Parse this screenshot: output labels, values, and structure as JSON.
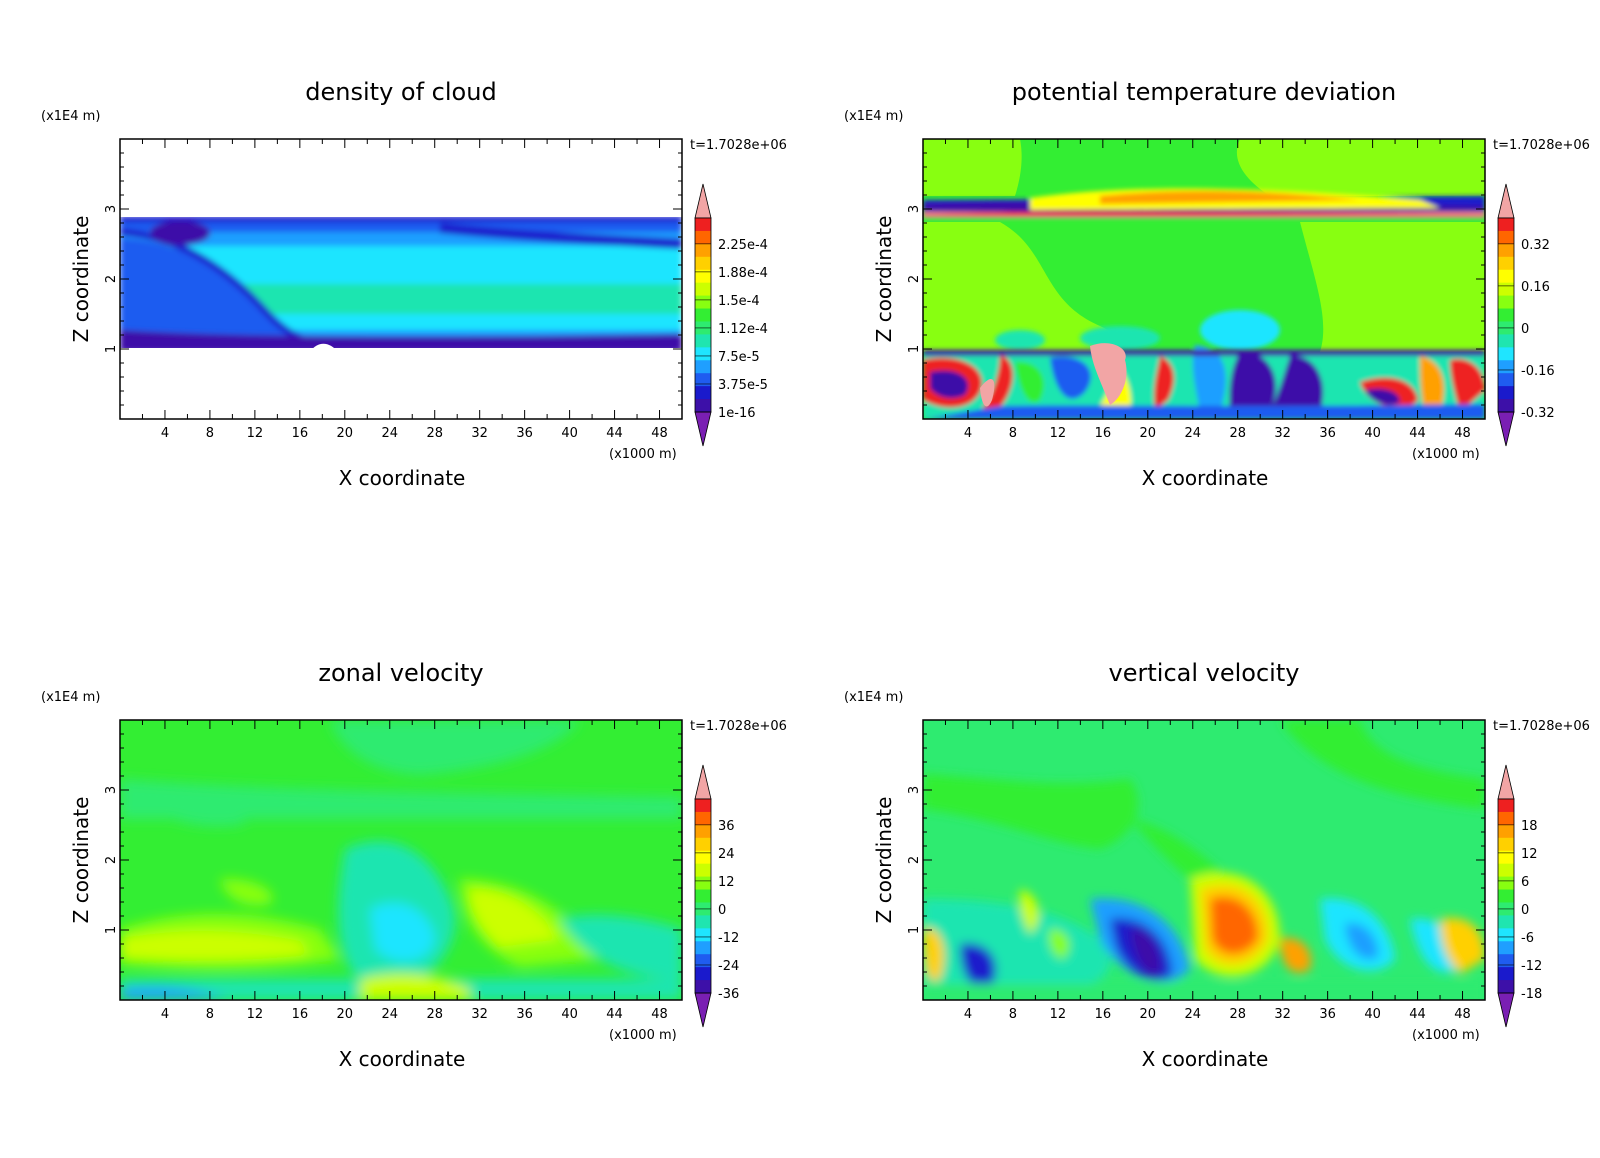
{
  "panels": [
    {
      "id": "density",
      "title": "density of cloud",
      "time_label": "t=1.7028e+06",
      "scale_y": "(x1E4 m)",
      "scale_x": "(x1000 m)",
      "xlabel": "X coordinate",
      "ylabel": "Z coordinate"
    },
    {
      "id": "theta",
      "title": "potential temperature deviation",
      "time_label": "t=1.7028e+06",
      "scale_y": "(x1E4 m)",
      "scale_x": "(x1000 m)",
      "xlabel": "X coordinate",
      "ylabel": "Z coordinate"
    },
    {
      "id": "zonal",
      "title": "zonal velocity",
      "time_label": "t=1.7028e+06",
      "scale_y": "(x1E4 m)",
      "scale_x": "(x1000 m)",
      "xlabel": "X coordinate",
      "ylabel": "Z coordinate"
    },
    {
      "id": "vertical",
      "title": "vertical velocity",
      "time_label": "t=1.7028e+06",
      "scale_y": "(x1E4 m)",
      "scale_x": "(x1000 m)",
      "xlabel": "X coordinate",
      "ylabel": "Z coordinate"
    }
  ],
  "chart_data": [
    {
      "type": "heatmap",
      "title": "density of cloud",
      "xlabel": "X coordinate",
      "ylabel": "Z coordinate",
      "xlim": [
        0,
        50
      ],
      "ylim": [
        0,
        4
      ],
      "x_ticks": [
        4,
        8,
        12,
        16,
        20,
        24,
        28,
        32,
        36,
        40,
        44,
        48
      ],
      "y_ticks": [
        1,
        2,
        3
      ],
      "colorbar_labels": [
        "2.25e-4",
        "1.88e-4",
        "1.5e-4",
        "1.12e-4",
        "7.5e-5",
        "3.75e-5",
        "1e-16"
      ],
      "cloud_layer_z": [
        1.0,
        2.85
      ]
    },
    {
      "type": "heatmap",
      "title": "potential temperature deviation",
      "xlabel": "X coordinate",
      "ylabel": "Z coordinate",
      "xlim": [
        0,
        50
      ],
      "ylim": [
        0,
        4
      ],
      "x_ticks": [
        4,
        8,
        12,
        16,
        20,
        24,
        28,
        32,
        36,
        40,
        44,
        48
      ],
      "y_ticks": [
        1,
        2,
        3
      ],
      "colorbar_labels": [
        "0.32",
        "0.16",
        "0",
        "-0.16",
        "-0.32"
      ]
    },
    {
      "type": "heatmap",
      "title": "zonal velocity",
      "xlabel": "X coordinate",
      "ylabel": "Z coordinate",
      "xlim": [
        0,
        50
      ],
      "ylim": [
        0,
        4
      ],
      "x_ticks": [
        4,
        8,
        12,
        16,
        20,
        24,
        28,
        32,
        36,
        40,
        44,
        48
      ],
      "y_ticks": [
        1,
        2,
        3
      ],
      "colorbar_labels": [
        "36",
        "24",
        "12",
        "0",
        "-12",
        "-24",
        "-36"
      ]
    },
    {
      "type": "heatmap",
      "title": "vertical velocity",
      "xlabel": "X coordinate",
      "ylabel": "Z coordinate",
      "xlim": [
        0,
        50
      ],
      "ylim": [
        0,
        4
      ],
      "x_ticks": [
        4,
        8,
        12,
        16,
        20,
        24,
        28,
        32,
        36,
        40,
        44,
        48
      ],
      "y_ticks": [
        1,
        2,
        3
      ],
      "colorbar_labels": [
        "18",
        "12",
        "6",
        "0",
        "-6",
        "-12",
        "-18"
      ]
    }
  ],
  "palette": [
    "#7a1fb3",
    "#3d10a8",
    "#1a1acc",
    "#1f5cf0",
    "#1f9fff",
    "#1fe5ff",
    "#1fe5b0",
    "#2eeb70",
    "#33ee33",
    "#88ff11",
    "#ccff00",
    "#ffff00",
    "#ffd000",
    "#ffa000",
    "#ff6600",
    "#ee2020",
    "#f2a5a5"
  ],
  "colors": {
    "frame": "#000000",
    "background": "#ffffff"
  }
}
